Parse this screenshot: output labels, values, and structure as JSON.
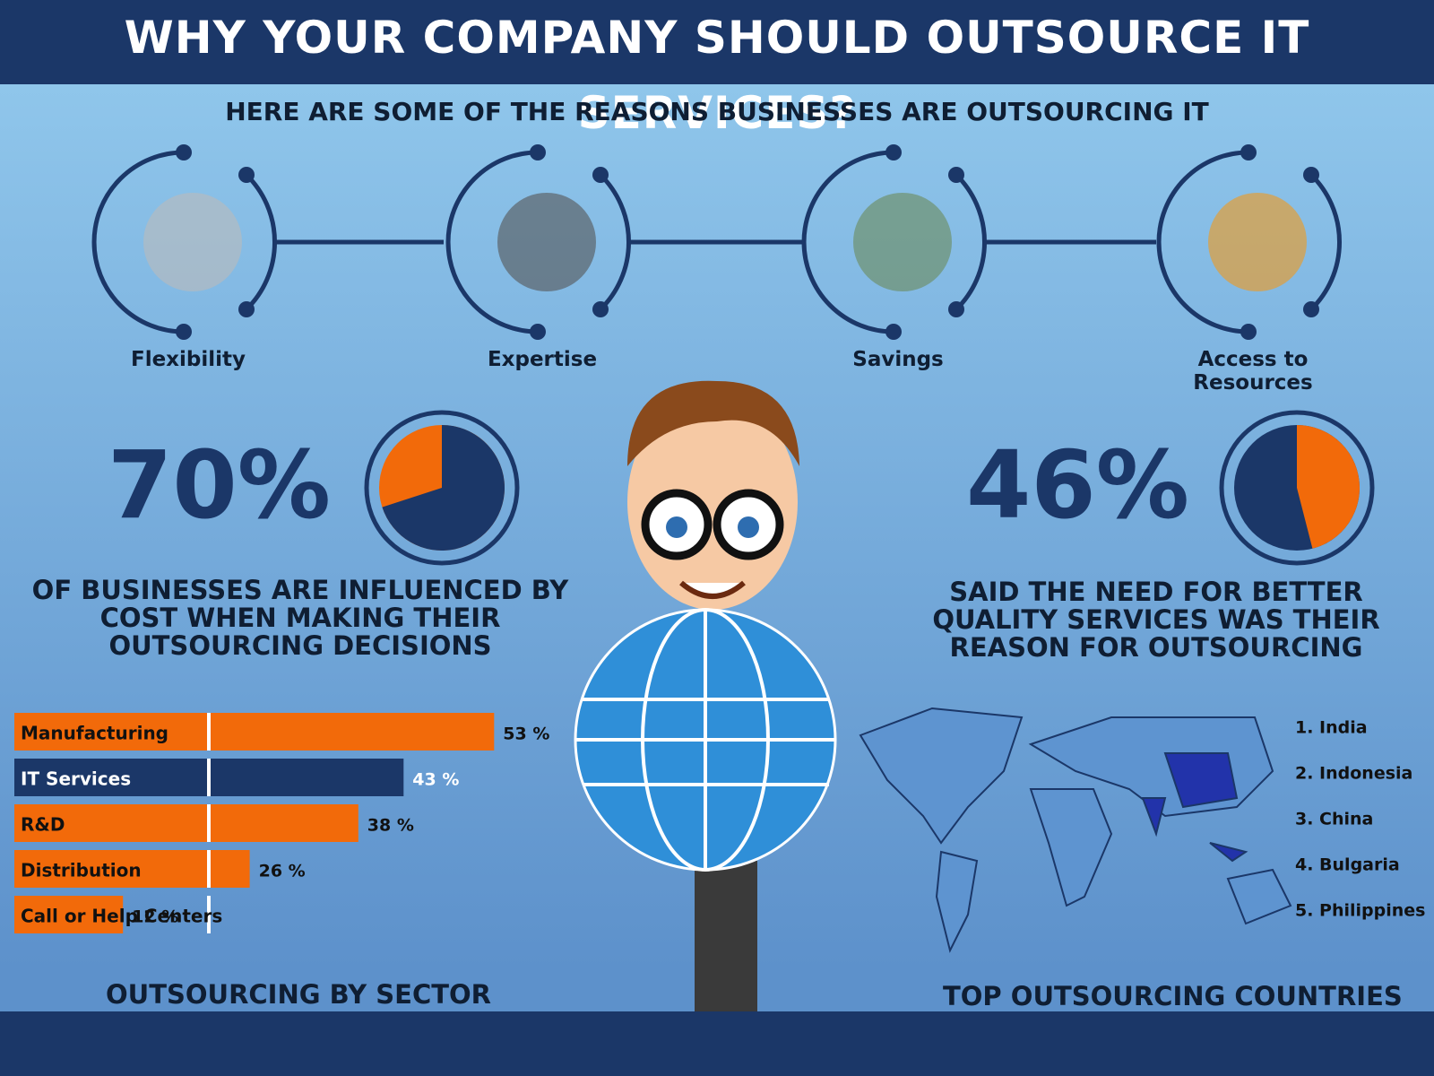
{
  "title": "WHY YOUR COMPANY SHOULD OUTSOURCE IT SERVICES?",
  "subtitle": "HERE ARE SOME OF THE REASONS BUSINESSES ARE OUTSOURCING IT",
  "reasons": [
    "Flexibility",
    "Expertise",
    "Savings",
    "Access to Resources"
  ],
  "chart_data": [
    {
      "type": "pie",
      "values": [
        70
      ],
      "value_labels": [
        "70%"
      ],
      "color": "#1b3768",
      "rest_color": "#f26a0a",
      "caption": "OF BUSINESSES ARE INFLUENCED BY COST WHEN MAKING THEIR OUTSOURCING DECISIONS"
    },
    {
      "type": "pie",
      "values": [
        46
      ],
      "value_labels": [
        "46%"
      ],
      "color": "#f26a0a",
      "rest_color": "#1b3768",
      "caption": "SAID THE NEED FOR BETTER QUALITY SERVICES WAS THEIR REASON FOR OUTSOURCING"
    },
    {
      "type": "bar",
      "title": "OUTSOURCING BY SECTOR",
      "categories": [
        "Manufacturing",
        "IT Services",
        "R&D",
        "Distribution",
        "Call or Help Centers"
      ],
      "values": [
        53,
        43,
        38,
        26,
        12
      ],
      "value_labels": [
        "53 %",
        "43 %",
        "38 %",
        "26 %",
        "12 %"
      ],
      "colors": [
        "#f26a0a",
        "#1b3768",
        "#f26a0a",
        "#f26a0a",
        "#f26a0a"
      ]
    }
  ],
  "countries_title": "TOP OUTSOURCING COUNTRIES",
  "countries": [
    "1. India",
    "2. Indonesia",
    "3. China",
    "4. Bulgaria",
    "5. Philippines"
  ]
}
